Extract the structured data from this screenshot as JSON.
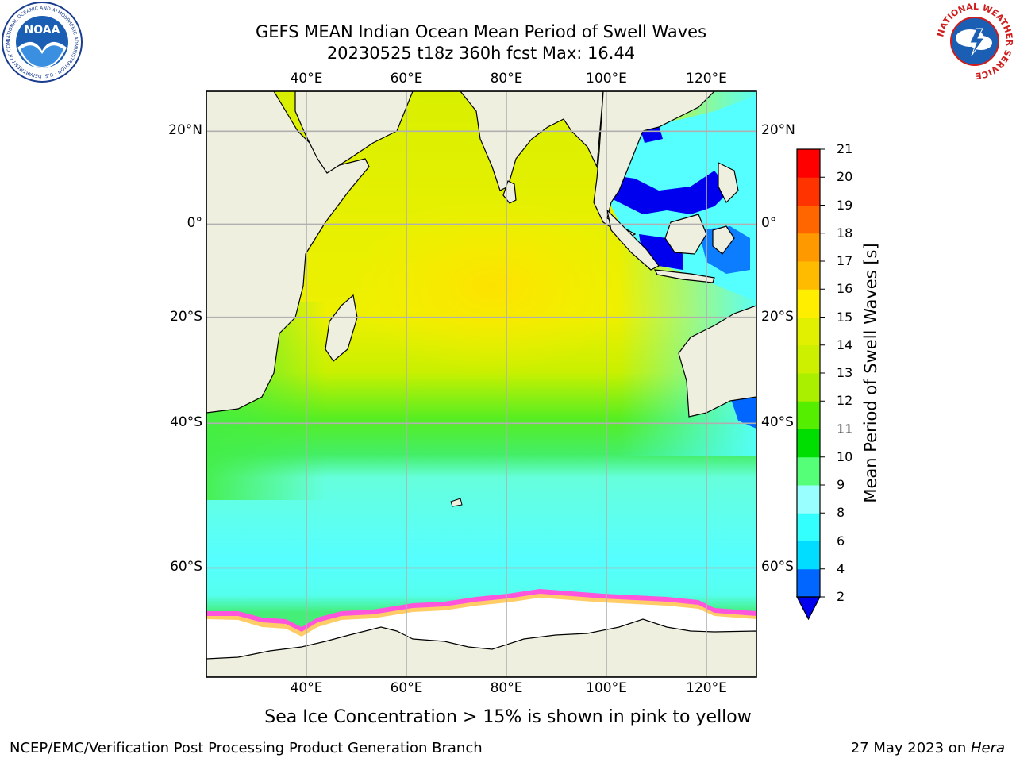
{
  "title": {
    "line1": "GEFS MEAN Indian Ocean Mean Period of Swell Waves",
    "line2": "20230525 t18z 360h fcst   Max: 16.44"
  },
  "map": {
    "lon_range": [
      20,
      130
    ],
    "lat_range": [
      -70,
      28
    ],
    "lon_ticks": [
      {
        "value": 40,
        "label": "40°E"
      },
      {
        "value": 60,
        "label": "60°E"
      },
      {
        "value": 80,
        "label": "80°E"
      },
      {
        "value": 100,
        "label": "100°E"
      },
      {
        "value": 120,
        "label": "120°E"
      }
    ],
    "lat_ticks": [
      {
        "value": 20,
        "label": "20°N"
      },
      {
        "value": 0,
        "label": "0°"
      },
      {
        "value": -20,
        "label": "20°S"
      },
      {
        "value": -40,
        "label": "40°S"
      },
      {
        "value": -60,
        "label": "60°S"
      }
    ],
    "land_color": "#efefdf",
    "ice_color": "#ffffff",
    "ice_edge_colors": [
      "#ff00ff",
      "#ff88cc",
      "#ffcc66"
    ],
    "grid": true
  },
  "colorbar": {
    "title": "Mean Period of Swell Waves [s]",
    "levels": [
      2,
      4,
      6,
      8,
      9,
      10,
      11,
      12,
      13,
      14,
      15,
      16,
      17,
      18,
      19,
      20,
      21
    ],
    "labels": [
      "2",
      "4",
      "6",
      "8",
      "9",
      "10",
      "11",
      "12",
      "13",
      "14",
      "15",
      "16",
      "17",
      "18",
      "19",
      "20",
      "21"
    ],
    "colors": [
      "#0066ff",
      "#00ddff",
      "#33ffff",
      "#99ffff",
      "#55ff77",
      "#00dd00",
      "#55ee00",
      "#aaee00",
      "#ccf000",
      "#e0f000",
      "#ffee00",
      "#ffbb00",
      "#ff9900",
      "#ff6600",
      "#ff3300",
      "#ff0000"
    ],
    "under_color": "#0000ee"
  },
  "footer": {
    "sea_ice_note": "Sea Ice Concentration > 15% is shown in pink to yellow",
    "credit_left": "NCEP/EMC/Verification Post Processing Product Generation Branch",
    "credit_right_date": "27 May 2023 on ",
    "credit_right_host": "Hera"
  },
  "logos": {
    "noaa_text": "NOAA",
    "noaa_ring_text": "NATIONAL OCEANIC AND ATMOSPHERIC ADMINISTRATION · U.S. DEPARTMENT OF COMMERCE",
    "nws_ring_text": "NATIONAL WEATHER SERVICE"
  }
}
